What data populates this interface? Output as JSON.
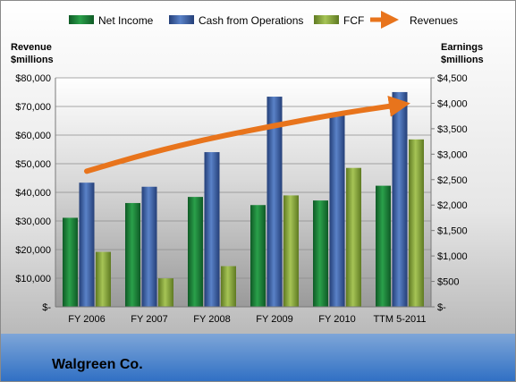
{
  "company": "Walgreen Co.",
  "chart_data": {
    "type": "bar",
    "categories": [
      "FY 2006",
      "FY 2007",
      "FY 2008",
      "FY 2009",
      "FY 2010",
      "TTM 5-2011"
    ],
    "left_axis": {
      "title_line1": "Revenue",
      "title_line2": "$millions",
      "min": 0,
      "max": 80000,
      "ticks": [
        "$-",
        "$10,000",
        "$20,000",
        "$30,000",
        "$40,000",
        "$50,000",
        "$60,000",
        "$70,000",
        "$80,000"
      ]
    },
    "right_axis": {
      "title_line1": "Earnings",
      "title_line2": "$millions",
      "min": 0,
      "max": 4500,
      "ticks": [
        "$-",
        "$500",
        "$1,000",
        "$1,500",
        "$2,000",
        "$2,500",
        "$3,000",
        "$3,500",
        "$4,000",
        "$4,500"
      ]
    },
    "series": [
      {
        "name": "Net Income",
        "axis": "right",
        "color": "#1e8a3c",
        "values": [
          1750,
          2040,
          2160,
          2000,
          2090,
          2380
        ]
      },
      {
        "name": "Cash from Operations",
        "axis": "right",
        "color": "#3a5fa8",
        "values": [
          2440,
          2360,
          3040,
          4130,
          3770,
          4220
        ]
      },
      {
        "name": "FCF",
        "axis": "right",
        "color": "#8aaa3c",
        "values": [
          1080,
          560,
          800,
          2190,
          2730,
          3290
        ]
      },
      {
        "name": "Revenues",
        "axis": "left",
        "color": "#e8741c",
        "type": "line",
        "values": [
          47400,
          53800,
          59000,
          63300,
          67400,
          70600
        ]
      }
    ],
    "legend_position": "top",
    "grid": true
  }
}
